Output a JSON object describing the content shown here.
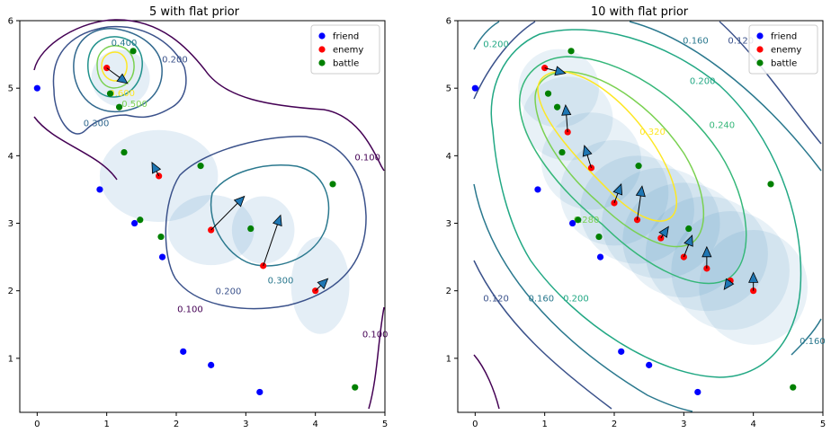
{
  "chart_data": [
    {
      "type": "scatter",
      "title": "5 with flat prior",
      "xlim": [
        -0.25,
        5
      ],
      "ylim": [
        0.2,
        6
      ],
      "xticks": [
        0,
        1,
        2,
        3,
        4,
        5
      ],
      "yticks": [
        1,
        2,
        3,
        4,
        5,
        6
      ],
      "legend_placement": "top-right",
      "series": [
        {
          "name": "friend",
          "color": "#0000ff",
          "points": [
            [
              0,
              5
            ],
            [
              0.9,
              3.5
            ],
            [
              1.4,
              3.0
            ],
            [
              1.8,
              2.5
            ],
            [
              2.1,
              1.1
            ],
            [
              2.5,
              0.9
            ],
            [
              3.2,
              0.5
            ]
          ]
        },
        {
          "name": "enemy",
          "color": "#ff0000",
          "points": [
            [
              1.0,
              5.3
            ],
            [
              1.75,
              3.7
            ],
            [
              2.5,
              2.9
            ],
            [
              3.25,
              2.37
            ],
            [
              4.0,
              2.0
            ]
          ]
        },
        {
          "name": "battle",
          "color": "#008000",
          "points": [
            [
              1.38,
              5.55
            ],
            [
              1.05,
              4.92
            ],
            [
              1.18,
              4.72
            ],
            [
              1.25,
              4.05
            ],
            [
              2.35,
              3.85
            ],
            [
              1.48,
              3.05
            ],
            [
              1.78,
              2.8
            ],
            [
              3.07,
              2.92
            ],
            [
              4.25,
              3.58
            ],
            [
              4.57,
              0.57
            ]
          ]
        }
      ],
      "arrows": [
        [
          1.0,
          5.3,
          1.3,
          5.07
        ],
        [
          1.75,
          3.7,
          1.65,
          3.9
        ],
        [
          2.5,
          2.9,
          2.98,
          3.4
        ],
        [
          3.25,
          2.37,
          3.5,
          3.12
        ],
        [
          4.0,
          2.0,
          4.18,
          2.18
        ]
      ],
      "blobs": [
        [
          1.75,
          3.7,
          0.85,
          0.68
        ],
        [
          2.5,
          2.9,
          0.62,
          0.52
        ],
        [
          3.25,
          2.9,
          0.45,
          0.5
        ],
        [
          4.07,
          2.08,
          0.42,
          0.72
        ],
        [
          1.2,
          5.15,
          0.42,
          0.42
        ]
      ],
      "contour_labels": [
        {
          "text": "0.400",
          "x": 1.25,
          "y": 5.67,
          "color": "#2a788e"
        },
        {
          "text": "0.200",
          "x": 1.98,
          "y": 5.42,
          "color": "#3b528b"
        },
        {
          "text": "0.500",
          "x": 1.4,
          "y": 4.76,
          "color": "#7ad151"
        },
        {
          "text": "0.600",
          "x": 1.22,
          "y": 4.92,
          "color": "#fde725"
        },
        {
          "text": "0.300",
          "x": 0.85,
          "y": 4.48,
          "color": "#31688e"
        },
        {
          "text": "0.100",
          "x": 4.75,
          "y": 3.97,
          "color": "#440154"
        },
        {
          "text": "0.300",
          "x": 3.5,
          "y": 2.15,
          "color": "#2a788e"
        },
        {
          "text": "0.200",
          "x": 2.75,
          "y": 1.99,
          "color": "#3b528b"
        },
        {
          "text": "0.100",
          "x": 2.2,
          "y": 1.72,
          "color": "#440154"
        },
        {
          "text": "0.100",
          "x": 4.86,
          "y": 1.35,
          "color": "#440154"
        }
      ]
    },
    {
      "type": "scatter",
      "title": "10 with flat prior",
      "xlim": [
        -0.25,
        5
      ],
      "ylim": [
        0.2,
        6
      ],
      "xticks": [
        0,
        1,
        2,
        3,
        4,
        5
      ],
      "yticks": [
        1,
        2,
        3,
        4,
        5,
        6
      ],
      "legend_placement": "top-right",
      "series": [
        {
          "name": "friend",
          "color": "#0000ff",
          "points": [
            [
              0,
              5
            ],
            [
              0.9,
              3.5
            ],
            [
              1.4,
              3.0
            ],
            [
              1.8,
              2.5
            ],
            [
              2.1,
              1.1
            ],
            [
              2.5,
              0.9
            ],
            [
              3.2,
              0.5
            ]
          ]
        },
        {
          "name": "enemy",
          "color": "#ff0000",
          "points": [
            [
              1.0,
              5.3
            ],
            [
              1.33,
              4.35
            ],
            [
              1.67,
              3.82
            ],
            [
              2.0,
              3.3
            ],
            [
              2.33,
              3.05
            ],
            [
              2.67,
              2.78
            ],
            [
              3.0,
              2.5
            ],
            [
              3.33,
              2.33
            ],
            [
              3.67,
              2.15
            ],
            [
              4.0,
              2.0
            ]
          ]
        },
        {
          "name": "battle",
          "color": "#008000",
          "points": [
            [
              1.38,
              5.55
            ],
            [
              1.05,
              4.92
            ],
            [
              1.18,
              4.72
            ],
            [
              1.25,
              4.05
            ],
            [
              2.35,
              3.85
            ],
            [
              1.48,
              3.05
            ],
            [
              1.78,
              2.8
            ],
            [
              3.07,
              2.92
            ],
            [
              4.25,
              3.58
            ],
            [
              4.57,
              0.57
            ]
          ]
        }
      ],
      "arrows": [
        [
          1.0,
          5.3,
          1.3,
          5.22
        ],
        [
          1.33,
          4.35,
          1.3,
          4.75
        ],
        [
          1.67,
          3.82,
          1.57,
          4.15
        ],
        [
          2.0,
          3.3,
          2.1,
          3.58
        ],
        [
          2.33,
          3.05,
          2.4,
          3.55
        ],
        [
          2.67,
          2.78,
          2.78,
          2.95
        ],
        [
          3.0,
          2.5,
          3.12,
          2.82
        ],
        [
          3.33,
          2.33,
          3.33,
          2.65
        ],
        [
          3.67,
          2.15,
          3.58,
          2.02
        ],
        [
          4.0,
          2.0,
          4.0,
          2.27
        ]
      ],
      "blobs": [
        [
          1.2,
          5.0,
          0.58,
          0.58
        ],
        [
          1.33,
          4.55,
          0.65,
          0.62
        ],
        [
          1.67,
          3.92,
          0.72,
          0.72
        ],
        [
          2.0,
          3.45,
          0.78,
          0.78
        ],
        [
          2.33,
          3.2,
          0.82,
          0.8
        ],
        [
          2.67,
          3.0,
          0.85,
          0.82
        ],
        [
          3.0,
          2.75,
          0.88,
          0.85
        ],
        [
          3.33,
          2.55,
          0.88,
          0.85
        ],
        [
          3.67,
          2.3,
          0.85,
          0.88
        ],
        [
          4.0,
          2.05,
          0.78,
          0.85
        ]
      ],
      "contour_labels": [
        {
          "text": "0.200",
          "x": 0.3,
          "y": 5.65,
          "color": "#22a884"
        },
        {
          "text": "0.160",
          "x": 3.17,
          "y": 5.7,
          "color": "#2a788e"
        },
        {
          "text": "0.120",
          "x": 3.82,
          "y": 5.7,
          "color": "#3b528b"
        },
        {
          "text": "0.200",
          "x": 3.27,
          "y": 5.1,
          "color": "#22a884"
        },
        {
          "text": "0.320",
          "x": 2.55,
          "y": 4.35,
          "color": "#fde725"
        },
        {
          "text": "0.240",
          "x": 3.55,
          "y": 4.45,
          "color": "#35b779"
        },
        {
          "text": "0.280",
          "x": 1.6,
          "y": 3.05,
          "color": "#7ad151"
        },
        {
          "text": "0.120",
          "x": 0.3,
          "y": 1.88,
          "color": "#3b528b"
        },
        {
          "text": "0.160",
          "x": 0.95,
          "y": 1.88,
          "color": "#2a788e"
        },
        {
          "text": "0.200",
          "x": 1.45,
          "y": 1.88,
          "color": "#22a884"
        },
        {
          "text": "0.160",
          "x": 4.85,
          "y": 1.25,
          "color": "#2a788e"
        }
      ]
    }
  ]
}
